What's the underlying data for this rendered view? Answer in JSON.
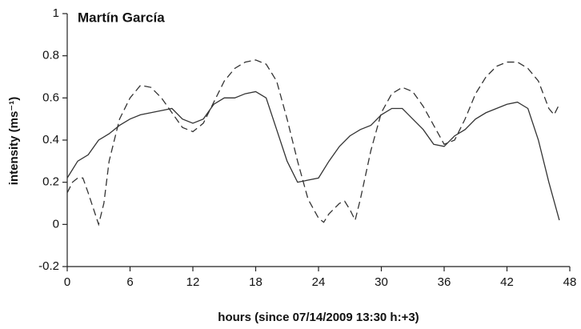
{
  "chart_data": {
    "type": "line",
    "title": "Martín García",
    "xlabel": "hours (since 07/14/2009 13:30 h:+3)",
    "ylabel": "intensity (ms⁻¹)",
    "xlim": [
      0,
      48
    ],
    "xticks": [
      0,
      6,
      12,
      18,
      24,
      30,
      36,
      42,
      48
    ],
    "ylim": [
      -0.2,
      1
    ],
    "yticks": [
      -0.2,
      0,
      0.2,
      0.4,
      0.6,
      0.8,
      1
    ],
    "grid": false,
    "series": [
      {
        "color": "#333333",
        "dash": "solid",
        "x": [
          0,
          1,
          2,
          3,
          4,
          5,
          6,
          7,
          8,
          9,
          10,
          11,
          12,
          13,
          14,
          15,
          16,
          17,
          18,
          19,
          20,
          21,
          22,
          23,
          24,
          25,
          26,
          27,
          28,
          29,
          30,
          31,
          32,
          33,
          34,
          35,
          36,
          37,
          38,
          39,
          40,
          41,
          42,
          43,
          44,
          45,
          46,
          47
        ],
        "values": [
          0.22,
          0.3,
          0.33,
          0.4,
          0.43,
          0.47,
          0.5,
          0.52,
          0.53,
          0.54,
          0.55,
          0.5,
          0.48,
          0.5,
          0.57,
          0.6,
          0.6,
          0.62,
          0.63,
          0.6,
          0.45,
          0.3,
          0.2,
          0.21,
          0.22,
          0.3,
          0.37,
          0.42,
          0.45,
          0.47,
          0.52,
          0.55,
          0.55,
          0.5,
          0.45,
          0.38,
          0.37,
          0.42,
          0.45,
          0.5,
          0.53,
          0.55,
          0.57,
          0.58,
          0.55,
          0.4,
          0.2,
          0.02
        ]
      },
      {
        "color": "#333333",
        "dash": "dashed",
        "x": [
          0,
          0.5,
          1,
          1.5,
          2,
          3,
          3.5,
          4,
          5,
          6,
          7,
          8,
          9,
          10,
          11,
          12,
          13,
          14,
          15,
          16,
          17,
          18,
          19,
          20,
          21,
          22,
          23,
          24,
          24.5,
          25,
          26,
          26.5,
          27,
          27.5,
          28,
          29,
          30,
          31,
          32,
          33,
          34,
          35,
          36,
          37,
          38,
          39,
          40,
          41,
          42,
          43,
          44,
          45,
          46,
          46.5,
          47
        ],
        "values": [
          0.15,
          0.2,
          0.22,
          0.22,
          0.15,
          0.0,
          0.1,
          0.3,
          0.5,
          0.6,
          0.66,
          0.65,
          0.6,
          0.53,
          0.46,
          0.44,
          0.48,
          0.58,
          0.68,
          0.74,
          0.77,
          0.78,
          0.76,
          0.68,
          0.5,
          0.3,
          0.12,
          0.03,
          0.01,
          0.05,
          0.1,
          0.11,
          0.07,
          0.02,
          0.12,
          0.35,
          0.53,
          0.62,
          0.65,
          0.63,
          0.56,
          0.47,
          0.38,
          0.4,
          0.5,
          0.62,
          0.7,
          0.75,
          0.77,
          0.77,
          0.74,
          0.68,
          0.55,
          0.52,
          0.57
        ]
      }
    ]
  }
}
